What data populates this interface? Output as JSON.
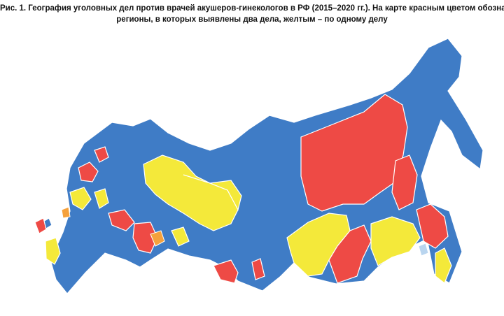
{
  "figure": {
    "caption_lines": [
      "Рис. 1. География уголовных дел против врачей акушеров-гинекологов в РФ (2015–2020 гг.). На карте красным цветом обозначены",
      "регионы, в которых выявлены два дела, желтым – по одному делу"
    ]
  }
}
